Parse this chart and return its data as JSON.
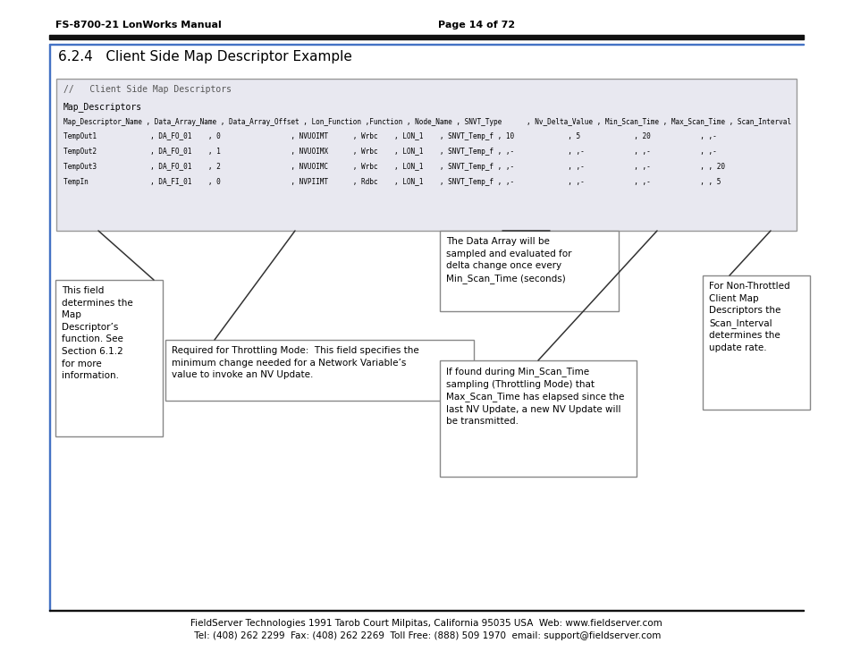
{
  "page_header_left": "FS-8700-21 LonWorks Manual",
  "page_header_right": "Page 14 of 72",
  "section_title": "6.2.4   Client Side Map Descriptor Example",
  "code_comment": "//   Client Side Map Descriptors",
  "code_label": "Map_Descriptors",
  "col_headers": [
    "Map_Descriptor_Name ",
    " Data_Array_Name ",
    " Data_Array_Offset ",
    " Lon_Function ",
    "Function ",
    " Node_Name ",
    " SNVT_Type      ",
    " Nv_Delta_Value ",
    " Min_Scan_Time ",
    " Max_Scan_Time ",
    " Scan_Interval"
  ],
  "rows": [
    [
      "TempOut1             ",
      " DA_FO_01    ",
      " 0                 ",
      " NVUOIMT      ",
      " Wrbc    ",
      " LON_1    ",
      " SNVT_Temp_f ",
      " 10             ",
      " 5             ",
      " 20            ",
      " ,-"
    ],
    [
      "TempOut2             ",
      " DA_FO_01    ",
      " 1                 ",
      " NVUOIMX      ",
      " Wrbc    ",
      " LON_1    ",
      " SNVT_Temp_f ",
      " ,-             ",
      " ,-            ",
      " ,-            ",
      " ,-"
    ],
    [
      "TempOut3             ",
      " DA_FO_01    ",
      " 2                 ",
      " NVUOIMC      ",
      " Wrbc    ",
      " LON_1    ",
      " SNVT_Temp_f ",
      " ,-             ",
      " ,-            ",
      " ,-            ",
      " , 20"
    ],
    [
      "TempIn               ",
      " DA_FI_01    ",
      " 0                 ",
      " NVPIIMT      ",
      " Rdbc    ",
      " LON_1    ",
      " SNVT_Temp_f ",
      " ,-             ",
      " ,-            ",
      " ,-            ",
      " , 5"
    ]
  ],
  "box1_text": "This field\ndetermines the\nMap\nDescriptor’s\nfunction. See\nSection 6.1.2\nfor more\ninformation.",
  "box2_text": "Required for Throttling Mode:  This field specifies the\nminimum change needed for a Network Variable’s\nvalue to invoke an NV Update.",
  "box3_text": "The Data Array will be\nsampled and evaluated for\ndelta change once every\nMin_Scan_Time (seconds)",
  "box4_text": "If found during Min_Scan_Time\nsampling (Throttling Mode) that\nMax_Scan_Time has elapsed since the\nlast NV Update, a new NV Update will\nbe transmitted.",
  "box5_text": "For Non-Throttled\nClient Map\nDescriptors the\nScan_Interval\ndetermines the\nupdate rate.",
  "footer_bold": "FieldServer Technologies",
  "footer_rest": " 1991 Tarob Court Milpitas, California 95035 USA  Web: www.fieldserver.com",
  "footer_line2_bold_parts": [
    "Tel",
    "Fax",
    "Toll Free",
    "email"
  ],
  "footer_line2": " Tel: (408) 262 2299  Fax: (408) 262 2269  Toll Free: (888) 509 1970  email: support@fieldserver.com",
  "bg_color": "#ffffff",
  "code_box_bg": "#e8e8f0",
  "section_border_color": "#4472c4"
}
